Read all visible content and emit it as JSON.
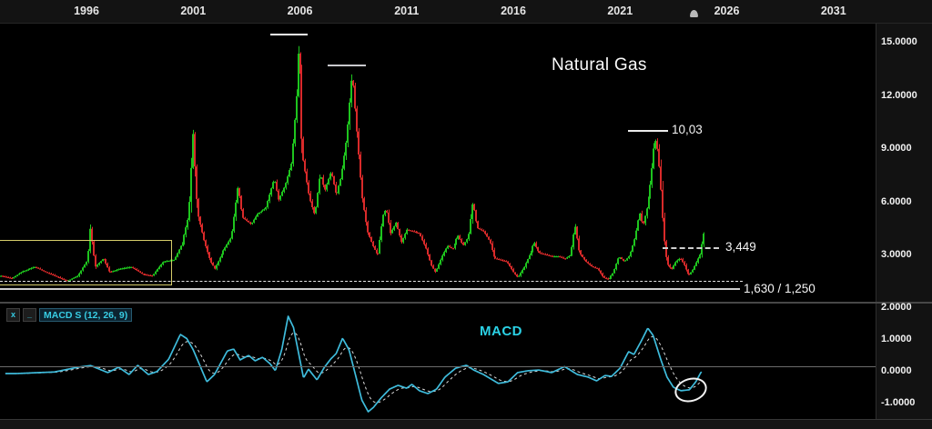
{
  "title": "Natural Gas",
  "top_axis": {
    "years": [
      "1996",
      "2001",
      "2006",
      "2011",
      "2016",
      "2021",
      "2026",
      "2031"
    ]
  },
  "price_axis": {
    "tick_labels": [
      "15.0000",
      "12.0000",
      "9.0000",
      "6.0000",
      "3.0000"
    ],
    "tick_values": [
      15,
      12,
      9,
      6,
      3
    ]
  },
  "macd_axis": {
    "tick_labels": [
      "2.0000",
      "1.0000",
      "0.0000",
      "-1.0000"
    ],
    "tick_values": [
      2,
      1,
      0,
      -1
    ]
  },
  "indicator": {
    "close_glyph": "x",
    "minimize_glyph": "_",
    "label": "MACD S (12, 26, 9)",
    "watermark": "MACD"
  },
  "annotations": {
    "peak": {
      "label": "10,03",
      "level": 10.03
    },
    "resistance": {
      "label": "3,449",
      "level": 3.449,
      "style": "dashed"
    },
    "support": {
      "label": "1,630 / 1,250",
      "dashed_level": 1.63,
      "solid_level": 1.25
    },
    "peak_line_1_level": 15.45,
    "peak_line_2_level": 13.4,
    "consolidation_box": {
      "years": [
        1992,
        2000
      ],
      "price_range": [
        1.25,
        3.6
      ],
      "color": "#d5cc69"
    },
    "macd_ellipse": {
      "year": 2024.2,
      "value": -0.65
    }
  },
  "colors": {
    "background": "#000000",
    "candle_up": "#1ec41e",
    "candle_down": "#d92a2a",
    "macd_line": "#3fbcdc",
    "macd_signal": "#d8d8d8",
    "accent_cyan": "#2bd2e6",
    "annotation_white": "#f2f2f2",
    "box_yellow": "#d5cc69"
  },
  "chart_data": [
    {
      "type": "candlestick",
      "title": "Natural Gas",
      "interval": "monthly",
      "x_axis": {
        "tick_years": [
          1996,
          2001,
          2006,
          2011,
          2016,
          2021,
          2026,
          2031
        ],
        "visible_range": [
          1991.9,
          2033.2
        ]
      },
      "y_axis": {
        "ticks": [
          15,
          12,
          9,
          6,
          3
        ],
        "grid": false
      },
      "price_path_anchors": [
        [
          1992.0,
          1.8
        ],
        [
          1992.5,
          1.65
        ],
        [
          1993.0,
          2.05
        ],
        [
          1993.6,
          2.3
        ],
        [
          1994.1,
          2.0
        ],
        [
          1994.6,
          1.75
        ],
        [
          1995.1,
          1.5
        ],
        [
          1995.6,
          1.8
        ],
        [
          1996.05,
          2.7
        ],
        [
          1996.17,
          4.5
        ],
        [
          1996.4,
          2.3
        ],
        [
          1996.8,
          2.8
        ],
        [
          1997.1,
          2.0
        ],
        [
          1997.6,
          2.2
        ],
        [
          1998.1,
          2.3
        ],
        [
          1998.6,
          1.9
        ],
        [
          1999.1,
          1.8
        ],
        [
          1999.6,
          2.6
        ],
        [
          2000.1,
          2.7
        ],
        [
          2000.5,
          3.7
        ],
        [
          2000.8,
          5.2
        ],
        [
          2001.0,
          9.8
        ],
        [
          2001.2,
          5.4
        ],
        [
          2001.5,
          3.8
        ],
        [
          2001.8,
          2.6
        ],
        [
          2002.0,
          2.2
        ],
        [
          2002.4,
          3.2
        ],
        [
          2002.8,
          4.0
        ],
        [
          2003.1,
          6.9
        ],
        [
          2003.3,
          5.1
        ],
        [
          2003.7,
          4.7
        ],
        [
          2004.0,
          5.3
        ],
        [
          2004.4,
          5.6
        ],
        [
          2004.8,
          7.3
        ],
        [
          2005.0,
          6.1
        ],
        [
          2005.3,
          6.9
        ],
        [
          2005.6,
          8.2
        ],
        [
          2005.85,
          12.2
        ],
        [
          2005.95,
          15.4
        ],
        [
          2006.1,
          8.8
        ],
        [
          2006.45,
          6.2
        ],
        [
          2006.7,
          5.2
        ],
        [
          2006.95,
          7.6
        ],
        [
          2007.15,
          6.6
        ],
        [
          2007.45,
          7.7
        ],
        [
          2007.7,
          6.3
        ],
        [
          2007.95,
          7.4
        ],
        [
          2008.2,
          9.6
        ],
        [
          2008.45,
          13.3
        ],
        [
          2008.65,
          10.2
        ],
        [
          2008.9,
          6.3
        ],
        [
          2009.15,
          4.3
        ],
        [
          2009.4,
          3.5
        ],
        [
          2009.65,
          2.9
        ],
        [
          2009.9,
          5.2
        ],
        [
          2010.05,
          5.6
        ],
        [
          2010.25,
          4.2
        ],
        [
          2010.5,
          4.8
        ],
        [
          2010.75,
          3.7
        ],
        [
          2011.0,
          4.4
        ],
        [
          2011.3,
          4.3
        ],
        [
          2011.6,
          4.2
        ],
        [
          2011.9,
          3.4
        ],
        [
          2012.15,
          2.4
        ],
        [
          2012.35,
          2.0
        ],
        [
          2012.65,
          2.9
        ],
        [
          2012.9,
          3.5
        ],
        [
          2013.15,
          3.3
        ],
        [
          2013.4,
          4.1
        ],
        [
          2013.65,
          3.5
        ],
        [
          2013.9,
          4.0
        ],
        [
          2014.1,
          6.0
        ],
        [
          2014.3,
          4.5
        ],
        [
          2014.6,
          4.3
        ],
        [
          2014.9,
          3.7
        ],
        [
          2015.1,
          2.8
        ],
        [
          2015.4,
          2.7
        ],
        [
          2015.7,
          2.6
        ],
        [
          2016.0,
          2.0
        ],
        [
          2016.2,
          1.7
        ],
        [
          2016.5,
          2.3
        ],
        [
          2016.8,
          3.1
        ],
        [
          2016.98,
          3.7
        ],
        [
          2017.2,
          3.1
        ],
        [
          2017.5,
          3.0
        ],
        [
          2017.8,
          2.9
        ],
        [
          2018.1,
          2.9
        ],
        [
          2018.4,
          2.75
        ],
        [
          2018.7,
          3.0
        ],
        [
          2018.9,
          4.7
        ],
        [
          2019.1,
          3.1
        ],
        [
          2019.4,
          2.6
        ],
        [
          2019.7,
          2.3
        ],
        [
          2019.95,
          2.2
        ],
        [
          2020.2,
          1.7
        ],
        [
          2020.45,
          1.6
        ],
        [
          2020.7,
          2.0
        ],
        [
          2020.95,
          2.9
        ],
        [
          2021.2,
          2.6
        ],
        [
          2021.45,
          2.95
        ],
        [
          2021.7,
          4.0
        ],
        [
          2021.9,
          5.4
        ],
        [
          2022.05,
          4.6
        ],
        [
          2022.25,
          5.6
        ],
        [
          2022.45,
          7.2
        ],
        [
          2022.63,
          9.6
        ],
        [
          2022.78,
          8.8
        ],
        [
          2022.92,
          6.6
        ],
        [
          2023.05,
          4.1
        ],
        [
          2023.2,
          2.5
        ],
        [
          2023.4,
          2.15
        ],
        [
          2023.6,
          2.6
        ],
        [
          2023.8,
          2.8
        ],
        [
          2024.0,
          2.4
        ],
        [
          2024.2,
          1.8
        ],
        [
          2024.4,
          2.1
        ],
        [
          2024.6,
          2.6
        ],
        [
          2024.75,
          3.0
        ],
        [
          2024.92,
          4.2
        ]
      ],
      "key_levels": {
        "all_time_high": 15.45,
        "secondary_high": 13.4,
        "labeled_high": 10.03,
        "resistance": 3.449,
        "support": "1.630 / 1.250"
      }
    },
    {
      "type": "line",
      "name": "MACD S (12, 26, 9)",
      "y_axis": {
        "ticks": [
          2,
          1,
          0,
          -1
        ],
        "zero_line": true
      },
      "series": [
        {
          "name": "MACD",
          "style": "solid",
          "color": "#3fbcdc",
          "points": [
            [
              1992.7,
              -0.2
            ],
            [
              1994.5,
              -0.15
            ],
            [
              1995.6,
              0.0
            ],
            [
              1996.2,
              0.05
            ],
            [
              1997.0,
              -0.17
            ],
            [
              1997.5,
              0.0
            ],
            [
              1998.0,
              -0.23
            ],
            [
              1998.4,
              0.06
            ],
            [
              1998.9,
              -0.23
            ],
            [
              1999.3,
              -0.14
            ],
            [
              1999.85,
              0.25
            ],
            [
              2000.4,
              1.03
            ],
            [
              2000.7,
              0.9
            ],
            [
              2001.0,
              0.55
            ],
            [
              2001.64,
              -0.46
            ],
            [
              2002.0,
              -0.23
            ],
            [
              2002.6,
              0.51
            ],
            [
              2002.9,
              0.57
            ],
            [
              2003.2,
              0.23
            ],
            [
              2003.6,
              0.37
            ],
            [
              2003.9,
              0.2
            ],
            [
              2004.25,
              0.31
            ],
            [
              2004.6,
              0.11
            ],
            [
              2004.85,
              -0.11
            ],
            [
              2005.15,
              0.55
            ],
            [
              2005.45,
              1.6
            ],
            [
              2005.7,
              1.25
            ],
            [
              2006.17,
              -0.34
            ],
            [
              2006.4,
              -0.06
            ],
            [
              2006.8,
              -0.4
            ],
            [
              2007.15,
              0.0
            ],
            [
              2007.45,
              0.26
            ],
            [
              2007.7,
              0.43
            ],
            [
              2008.0,
              0.91
            ],
            [
              2008.3,
              0.55
            ],
            [
              2008.6,
              -0.23
            ],
            [
              2008.9,
              -1.03
            ],
            [
              2009.2,
              -1.4
            ],
            [
              2009.45,
              -1.26
            ],
            [
              2009.8,
              -0.97
            ],
            [
              2010.2,
              -0.69
            ],
            [
              2010.6,
              -0.57
            ],
            [
              2011.0,
              -0.66
            ],
            [
              2011.25,
              -0.54
            ],
            [
              2011.6,
              -0.74
            ],
            [
              2012.0,
              -0.83
            ],
            [
              2012.4,
              -0.69
            ],
            [
              2012.8,
              -0.31
            ],
            [
              2013.3,
              -0.03
            ],
            [
              2013.8,
              0.06
            ],
            [
              2014.15,
              -0.09
            ],
            [
              2014.6,
              -0.23
            ],
            [
              2015.3,
              -0.51
            ],
            [
              2015.75,
              -0.46
            ],
            [
              2016.2,
              -0.17
            ],
            [
              2016.7,
              -0.11
            ],
            [
              2017.2,
              -0.09
            ],
            [
              2017.8,
              -0.17
            ],
            [
              2018.4,
              0.02
            ],
            [
              2019.0,
              -0.23
            ],
            [
              2019.5,
              -0.31
            ],
            [
              2019.9,
              -0.43
            ],
            [
              2020.3,
              -0.26
            ],
            [
              2020.6,
              -0.29
            ],
            [
              2021.0,
              -0.03
            ],
            [
              2021.4,
              0.49
            ],
            [
              2021.65,
              0.4
            ],
            [
              2022.0,
              0.83
            ],
            [
              2022.3,
              1.23
            ],
            [
              2022.55,
              1.0
            ],
            [
              2022.9,
              0.26
            ],
            [
              2023.2,
              -0.31
            ],
            [
              2023.5,
              -0.63
            ],
            [
              2023.85,
              -0.74
            ],
            [
              2024.25,
              -0.71
            ],
            [
              2024.55,
              -0.46
            ],
            [
              2024.8,
              -0.15
            ]
          ]
        },
        {
          "name": "Signal",
          "style": "dashed",
          "color": "#d8d8d8",
          "derived": "9-period EMA of MACD"
        }
      ]
    }
  ]
}
